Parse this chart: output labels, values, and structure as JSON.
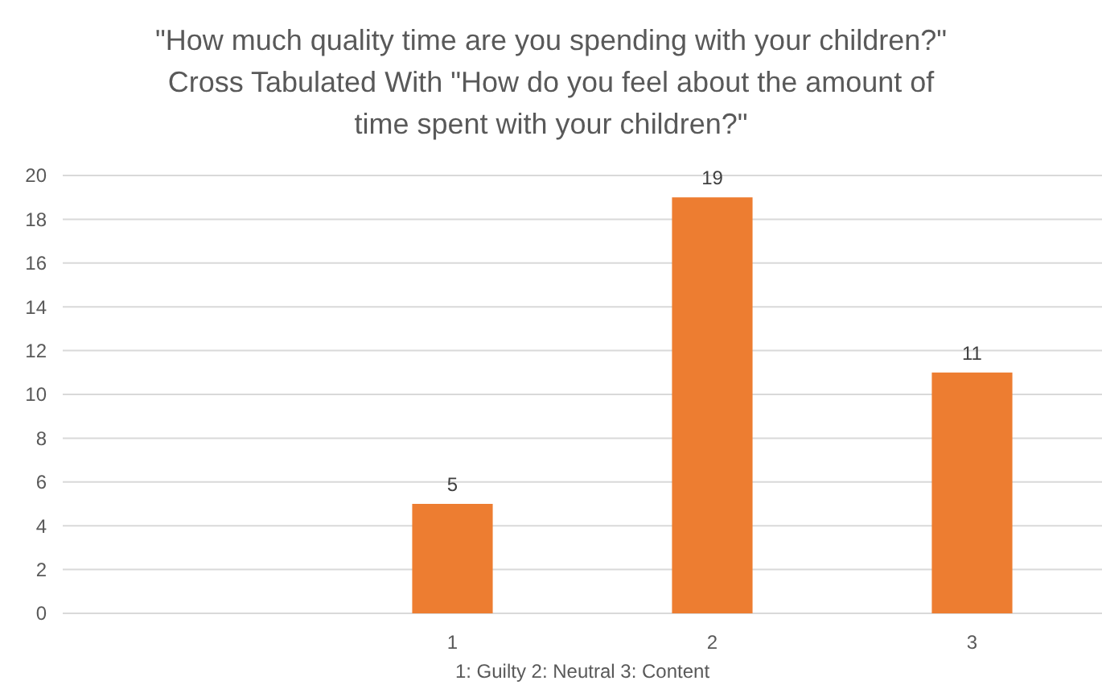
{
  "chart_data": {
    "type": "bar",
    "title": "\"How much quality time are you spending with your children?\"\nCross Tabulated With \"How do you feel about the amount of\ntime spent with your children?\"",
    "xlabel": "1: Guilty 2: Neutral 3: Content",
    "categories": [
      null,
      "1",
      "2",
      "3"
    ],
    "values": [
      null,
      5,
      19,
      11
    ],
    "color": "#ed7d31",
    "ylim": [
      0,
      20
    ],
    "yticks": [
      0,
      2,
      4,
      6,
      8,
      10,
      12,
      14,
      16,
      18,
      20
    ],
    "grid": "y",
    "data_labels": true
  }
}
